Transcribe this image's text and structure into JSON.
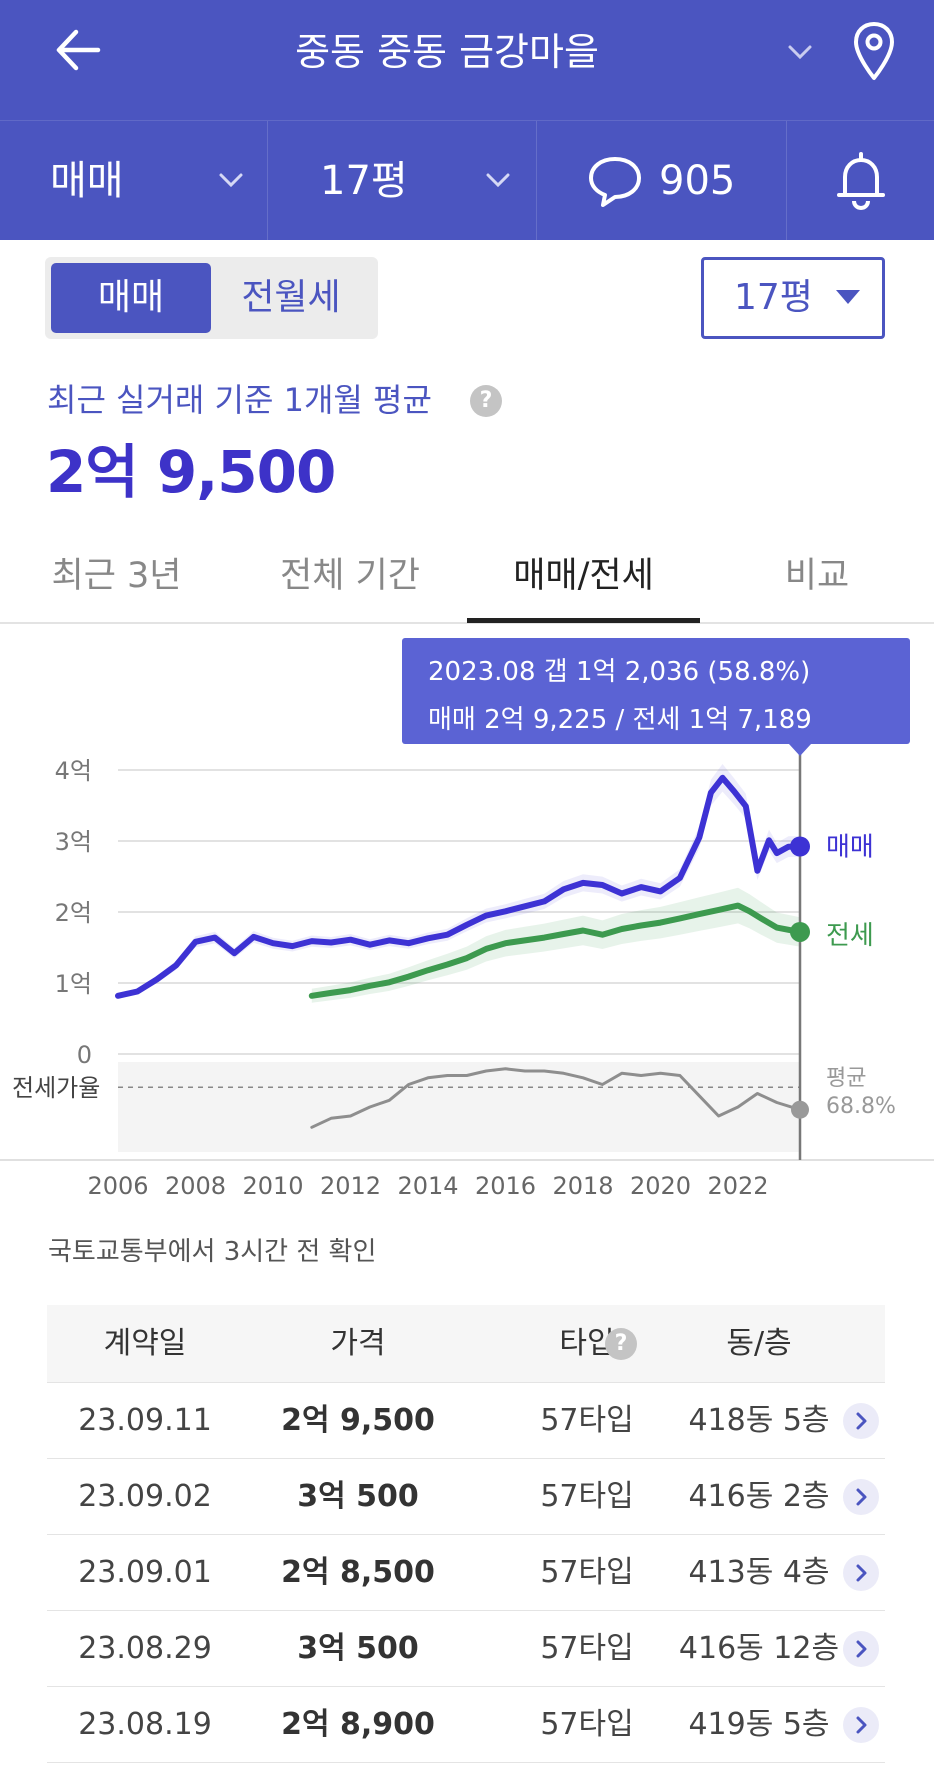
{
  "header": {
    "title": "중동 중동 금강마을",
    "icons": {
      "back": "back-arrow-icon",
      "dropdown": "chevron-down-icon",
      "location": "location-pin-icon"
    }
  },
  "filters": {
    "trade_type": "매매",
    "area": "17평",
    "comment_count": "905",
    "icons": {
      "comment": "speech-bubble-icon",
      "alert": "bell-icon"
    }
  },
  "toggle": {
    "sale": "매매",
    "rent": "전월세"
  },
  "area_select": {
    "value": "17평"
  },
  "summary": {
    "label": "최근 실거래 기준 1개월 평균",
    "help": "?",
    "price": "2억 9,500"
  },
  "tabs": [
    {
      "label": "최근 3년"
    },
    {
      "label": "전체 기간"
    },
    {
      "label": "매매/전세"
    },
    {
      "label": "비교"
    }
  ],
  "tooltip": {
    "line1": "2023.08  갭 1억 2,036 (58.8%)",
    "line2": "매매 2억 9,225 / 전세 1억 7,189"
  },
  "colors": {
    "brand": "#4b55c0",
    "sale": "#3d32d4",
    "rent": "#3d9a4f",
    "ratio": "#8e8e8e"
  },
  "chart_data": {
    "type": "line",
    "y_ticks": [
      "4억",
      "3억",
      "2억",
      "1억",
      "0"
    ],
    "x_ticks": [
      "2006",
      "2008",
      "2010",
      "2012",
      "2014",
      "2016",
      "2018",
      "2020",
      "2022"
    ],
    "ylim": [
      0,
      40000
    ],
    "y_unit": "만원",
    "series": [
      {
        "name": "매매",
        "x": [
          2006.0,
          2006.5,
          2007.0,
          2007.5,
          2008.0,
          2008.5,
          2009.0,
          2009.5,
          2010.0,
          2010.5,
          2011.0,
          2011.5,
          2012.0,
          2012.5,
          2013.0,
          2013.5,
          2014.0,
          2014.5,
          2015.0,
          2015.5,
          2016.0,
          2016.5,
          2017.0,
          2017.5,
          2018.0,
          2018.5,
          2019.0,
          2019.5,
          2020.0,
          2020.5,
          2021.0,
          2021.3,
          2021.6,
          2021.9,
          2022.2,
          2022.5,
          2022.8,
          2023.0,
          2023.3,
          2023.6
        ],
        "values": [
          8200,
          8800,
          10500,
          12500,
          15800,
          16400,
          14200,
          16500,
          15600,
          15200,
          15900,
          15700,
          16100,
          15400,
          16000,
          15600,
          16300,
          16800,
          18200,
          19500,
          20100,
          20800,
          21500,
          23200,
          24100,
          23800,
          22600,
          23500,
          22900,
          24800,
          30500,
          36800,
          38900,
          37000,
          34900,
          25800,
          30100,
          28300,
          29200,
          29225
        ]
      },
      {
        "name": "전세",
        "x": [
          2011.0,
          2011.5,
          2012.0,
          2012.5,
          2013.0,
          2013.5,
          2014.0,
          2014.5,
          2015.0,
          2015.5,
          2016.0,
          2016.5,
          2017.0,
          2017.5,
          2018.0,
          2018.5,
          2019.0,
          2019.5,
          2020.0,
          2020.5,
          2021.0,
          2021.5,
          2022.0,
          2022.3,
          2022.6,
          2023.0,
          2023.6
        ],
        "values": [
          8200,
          8600,
          9000,
          9600,
          10100,
          10900,
          11800,
          12600,
          13500,
          14800,
          15600,
          16000,
          16400,
          16900,
          17400,
          16800,
          17600,
          18100,
          18500,
          19100,
          19700,
          20300,
          20900,
          20100,
          19100,
          17800,
          17189
        ]
      }
    ],
    "ratio": {
      "name": "전세가율",
      "average_label": "평균",
      "average": "68.8%",
      "x": [
        2011.0,
        2011.5,
        2012.0,
        2012.5,
        2013.0,
        2013.5,
        2014.0,
        2014.5,
        2015.0,
        2015.5,
        2016.0,
        2016.5,
        2017.0,
        2017.5,
        2018.0,
        2018.5,
        2019.0,
        2019.5,
        2020.0,
        2020.5,
        2021.0,
        2021.5,
        2022.0,
        2022.5,
        2023.0,
        2023.6
      ],
      "values": [
        51,
        55,
        56,
        60,
        63,
        70,
        73,
        74,
        74,
        76,
        77,
        76,
        76,
        75,
        73,
        70,
        75,
        74,
        75,
        74,
        65,
        56,
        60,
        66,
        62,
        58.8
      ]
    }
  },
  "source_note": "국토교통부에서 3시간 전 확인",
  "table": {
    "headers": {
      "date": "계약일",
      "price": "가격",
      "type": "타입",
      "unit": "동/층"
    },
    "rows": [
      {
        "date": "23.09.11",
        "price": "2억 9,500",
        "type": "57타입",
        "unit": "418동 5층"
      },
      {
        "date": "23.09.02",
        "price": "3억 500",
        "type": "57타입",
        "unit": "416동 2층"
      },
      {
        "date": "23.09.01",
        "price": "2억 8,500",
        "type": "57타입",
        "unit": "413동 4층"
      },
      {
        "date": "23.08.29",
        "price": "3억 500",
        "type": "57타입",
        "unit": "416동 12층"
      },
      {
        "date": "23.08.19",
        "price": "2억 8,900",
        "type": "57타입",
        "unit": "419동 5층"
      }
    ]
  }
}
